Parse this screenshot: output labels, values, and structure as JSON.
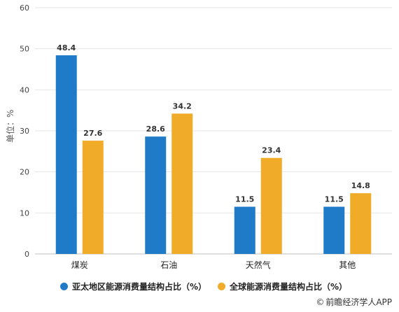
{
  "chart_data": {
    "type": "bar",
    "categories": [
      "煤炭",
      "石油",
      "天然气",
      "其他"
    ],
    "series": [
      {
        "name": "亚太地区能源消费量结构占比（%）",
        "values": [
          48.4,
          28.6,
          11.5,
          11.5
        ],
        "color": "#1f7bc8"
      },
      {
        "name": "全球能源消费量结构占比（%）",
        "values": [
          27.6,
          34.2,
          23.4,
          14.8
        ],
        "color": "#f0ac28"
      }
    ],
    "ylabel": "单位：%",
    "ylim": [
      0,
      60
    ],
    "yticks": [
      0,
      10,
      20,
      30,
      40,
      50,
      60
    ],
    "grid": true,
    "legend_position": "bottom"
  },
  "source": "前瞻经济学人APP",
  "copyright_symbol": "©"
}
